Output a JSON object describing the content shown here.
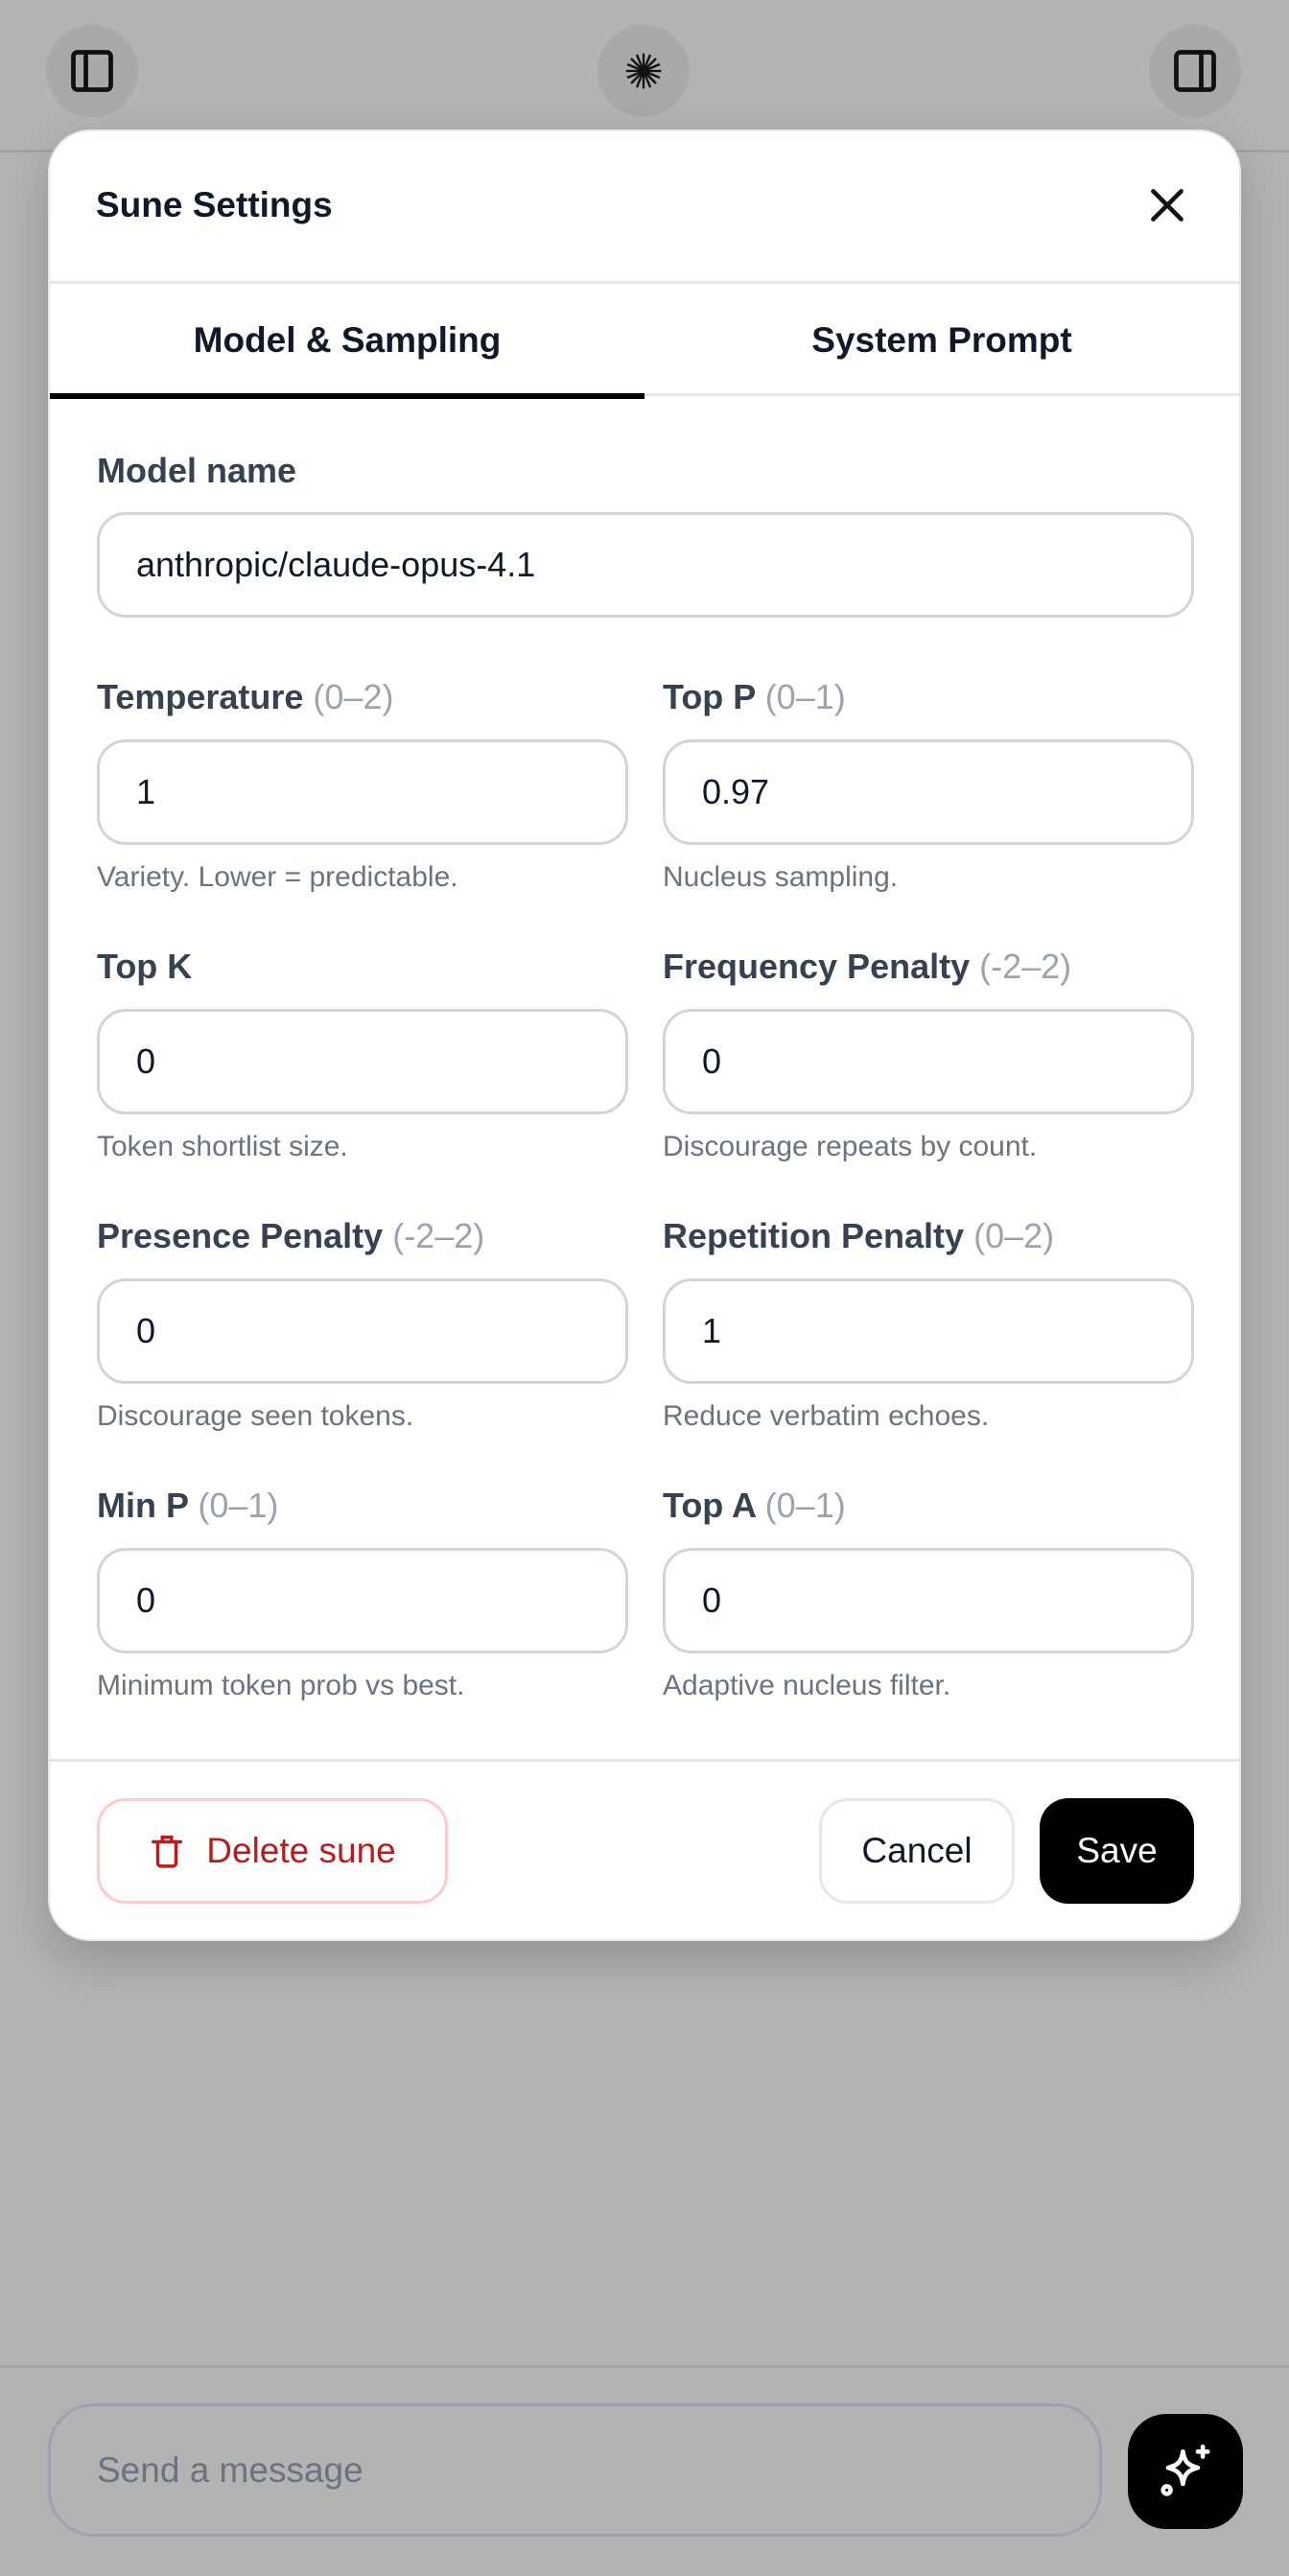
{
  "topbar": {
    "left_icon": "sidebar-left-icon",
    "center_icon": "sparkle-burst-icon",
    "right_icon": "sidebar-right-icon"
  },
  "modal": {
    "title": "Sune Settings",
    "tabs": [
      {
        "label": "Model & Sampling",
        "active": true
      },
      {
        "label": "System Prompt",
        "active": false
      }
    ],
    "model_name": {
      "label": "Model name",
      "value": "anthropic/claude-opus-4.1"
    },
    "fields": [
      {
        "label": "Temperature",
        "range": "(0–2)",
        "value": "1",
        "help": "Variety. Lower = predictable."
      },
      {
        "label": "Top P",
        "range": "(0–1)",
        "value": "0.97",
        "help": "Nucleus sampling."
      },
      {
        "label": "Top K",
        "range": "",
        "value": "0",
        "help": "Token shortlist size."
      },
      {
        "label": "Frequency Penalty",
        "range": "(-2–2)",
        "value": "0",
        "help": "Discourage repeats by count."
      },
      {
        "label": "Presence Penalty",
        "range": "(-2–2)",
        "value": "0",
        "help": "Discourage seen tokens."
      },
      {
        "label": "Repetition Penalty",
        "range": "(0–2)",
        "value": "1",
        "help": "Reduce verbatim echoes."
      },
      {
        "label": "Min P",
        "range": "(0–1)",
        "value": "0",
        "help": "Minimum token prob vs best."
      },
      {
        "label": "Top A",
        "range": "(0–1)",
        "value": "0",
        "help": "Adaptive nucleus filter."
      }
    ],
    "footer": {
      "delete_label": "Delete sune",
      "cancel_label": "Cancel",
      "save_label": "Save"
    },
    "colors": {
      "danger": "#b91c1c",
      "primary": "#000000"
    }
  },
  "composer": {
    "placeholder": "Send a message",
    "send_icon": "sparkles-icon"
  }
}
